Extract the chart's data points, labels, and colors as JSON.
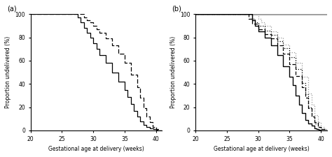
{
  "panel_a": {
    "solid_line": {
      "x": [
        20,
        27,
        27.5,
        28,
        28.5,
        29,
        29.5,
        30,
        30.5,
        31,
        32,
        33,
        34,
        35,
        35.5,
        36,
        36.5,
        37,
        37.5,
        38,
        38.5,
        39,
        39.3,
        39.6,
        40,
        40.3,
        41
      ],
      "y": [
        100,
        100,
        97,
        93,
        88,
        84,
        80,
        75,
        70,
        65,
        58,
        50,
        42,
        35,
        29,
        23,
        17,
        12,
        8,
        5,
        3,
        2,
        1.5,
        1,
        0.5,
        0,
        0
      ]
    },
    "dashed_line": {
      "x": [
        20,
        28,
        28.5,
        29,
        29.5,
        30,
        30.5,
        31,
        32,
        33,
        34,
        35,
        36,
        37,
        37.5,
        38,
        38.5,
        39,
        39.5,
        40,
        40.5,
        41
      ],
      "y": [
        100,
        100,
        97,
        95,
        93,
        90,
        87,
        84,
        79,
        73,
        66,
        58,
        48,
        37,
        28,
        19,
        12,
        7,
        3,
        1,
        0,
        0
      ]
    }
  },
  "panel_b": {
    "solid_line": {
      "x": [
        20,
        28.5,
        29,
        29.5,
        30,
        31,
        32,
        33,
        34,
        35,
        35.5,
        36,
        36.5,
        37,
        37.5,
        38,
        38.5,
        39,
        39.3,
        39.6,
        40,
        41
      ],
      "y": [
        100,
        100,
        95,
        90,
        85,
        80,
        73,
        65,
        55,
        46,
        39,
        30,
        22,
        15,
        9,
        6,
        4,
        2,
        1,
        0.5,
        0,
        0
      ]
    },
    "dash_dot_line": {
      "x": [
        20,
        28,
        28.5,
        29,
        30,
        31,
        32,
        33,
        34,
        35,
        36,
        37,
        37.5,
        38,
        38.5,
        39,
        39.5,
        40,
        41
      ],
      "y": [
        100,
        100,
        96,
        92,
        87,
        83,
        79,
        73,
        66,
        57,
        47,
        37,
        28,
        19,
        12,
        7,
        3,
        1,
        0
      ]
    },
    "dotted_line1": {
      "x": [
        20,
        28.5,
        29,
        29.5,
        30,
        31,
        32,
        33,
        34,
        35,
        36,
        37,
        37.5,
        38,
        38.5,
        39,
        39.5,
        40,
        40.5,
        41
      ],
      "y": [
        100,
        100,
        96,
        93,
        90,
        86,
        82,
        77,
        71,
        63,
        53,
        41,
        31,
        20,
        12,
        6,
        3,
        1,
        0,
        0
      ]
    },
    "dotted_line2": {
      "x": [
        20,
        29.5,
        30,
        30.5,
        31,
        32,
        33,
        34,
        35,
        36,
        37,
        38,
        38.5,
        39,
        39.5,
        40,
        40.5,
        41
      ],
      "y": [
        100,
        100,
        96,
        93,
        90,
        85,
        80,
        74,
        67,
        58,
        46,
        32,
        22,
        13,
        7,
        3,
        1,
        0
      ]
    }
  },
  "xlabel": "Gestational age at delivery (weeks)",
  "ylabel": "Proportion undelivered (%)",
  "xlim": [
    20,
    41
  ],
  "ylim": [
    0,
    100
  ],
  "xticks": [
    20,
    25,
    30,
    35,
    40
  ],
  "yticks": [
    0,
    20,
    40,
    60,
    80,
    100
  ],
  "panel_labels": [
    "(a)",
    "(b)"
  ],
  "background_color": "#ffffff",
  "line_color": "#000000",
  "gray_bar_color": "#a0a0a0"
}
